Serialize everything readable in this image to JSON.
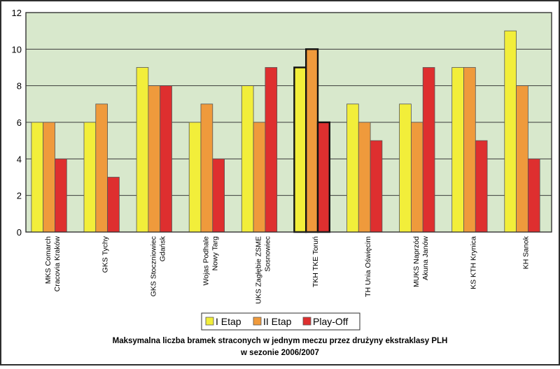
{
  "chart_data": {
    "type": "bar",
    "title_line1": "Maksymalna liczba bramek straconych w jednym meczu przez drużyny ekstraklasy PLH",
    "title_line2": "w sezonie 2006/2007",
    "xlabel": "",
    "ylabel": "",
    "ylim": [
      0,
      12
    ],
    "yticks": [
      0,
      2,
      4,
      6,
      8,
      10,
      12
    ],
    "grid": true,
    "legend_position": "bottom",
    "categories": [
      [
        "MKS Comarch",
        "Cracovia Kraków"
      ],
      [
        "GKS Tychy"
      ],
      [
        "GKS Stoczniowiec",
        "Gdańsk"
      ],
      [
        "Wojas Podhale",
        "Nowy Targ"
      ],
      [
        "UKS Zagłębie ZSME",
        "Sosnowiec"
      ],
      [
        "TKH TKE Toruń"
      ],
      [
        "TH Unia Oświęcim"
      ],
      [
        "MUKS Naprzód",
        "Akuna Janów"
      ],
      [
        "KS KTH Krynica"
      ],
      [
        "KH Sanok"
      ]
    ],
    "highlighted_category_index": 5,
    "series": [
      {
        "name": "I Etap",
        "color": "#f2ee3a",
        "values": [
          6,
          6,
          9,
          6,
          8,
          9,
          7,
          7,
          9,
          11
        ]
      },
      {
        "name": "II Etap",
        "color": "#ef9a3c",
        "values": [
          6,
          7,
          8,
          7,
          6,
          10,
          6,
          6,
          9,
          8
        ]
      },
      {
        "name": "Play-Off",
        "color": "#de2f2f",
        "values": [
          4,
          3,
          8,
          4,
          9,
          6,
          5,
          9,
          5,
          4
        ]
      }
    ],
    "colors": {
      "plot_background": "#d8e8cc",
      "gridline": "#3a3a3a",
      "frame": "#2e2e2e",
      "bar_stroke": "#555555"
    }
  }
}
